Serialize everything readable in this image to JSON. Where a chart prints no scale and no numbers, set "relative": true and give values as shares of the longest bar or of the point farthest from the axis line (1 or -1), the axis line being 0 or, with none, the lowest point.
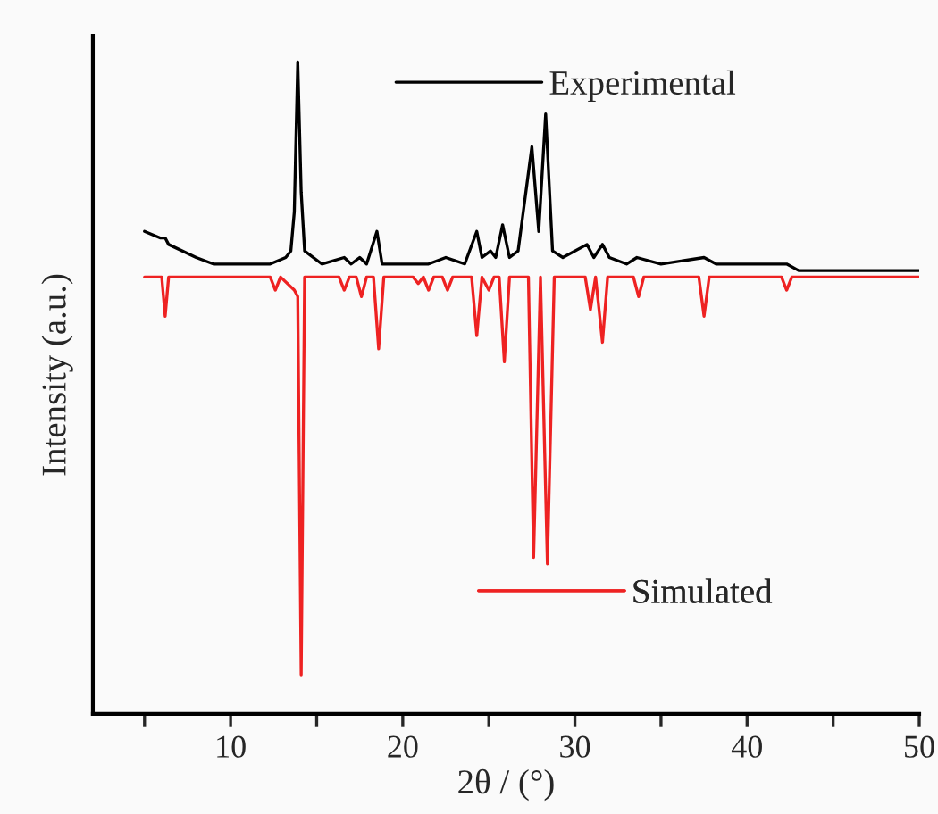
{
  "chart_data": {
    "type": "line",
    "relative": true,
    "xlabel": "2θ / (°)",
    "ylabel": "Intensity (a.u.)",
    "xlim": [
      2,
      50
    ],
    "xticks": [
      {
        "value": 5,
        "label": null
      },
      10,
      {
        "value": 15,
        "label": null
      },
      20,
      {
        "value": 25,
        "label": null
      },
      30,
      {
        "value": 35,
        "label": null
      },
      40,
      {
        "value": 45,
        "label": null
      },
      50
    ],
    "tick_labels": "x",
    "grid": false,
    "legend": "top",
    "marker": "none",
    "line_style": "solid",
    "series": [
      {
        "name": "Experimental",
        "color": "#000000",
        "x": [
          5.0,
          5.9,
          6.2,
          6.4,
          8.0,
          9.0,
          11.1,
          12.3,
          13.2,
          13.5,
          13.7,
          13.9,
          14.1,
          14.3,
          15.3,
          16.6,
          17.0,
          17.5,
          17.9,
          18.5,
          18.8,
          20.0,
          21.5,
          22.5,
          23.6,
          24.3,
          24.6,
          25.1,
          25.4,
          25.8,
          26.2,
          26.7,
          27.5,
          27.9,
          28.3,
          28.7,
          29.3,
          30.7,
          31.1,
          31.6,
          32.0,
          33.0,
          33.6,
          35.0,
          37.5,
          38.2,
          41.5,
          42.3,
          43.0,
          46.5,
          50.0
        ],
        "values": [
          0.74,
          0.73,
          0.73,
          0.72,
          0.7,
          0.69,
          0.69,
          0.69,
          0.7,
          0.71,
          0.77,
          1.0,
          0.8,
          0.71,
          0.69,
          0.7,
          0.69,
          0.7,
          0.69,
          0.74,
          0.69,
          0.69,
          0.69,
          0.7,
          0.69,
          0.74,
          0.7,
          0.71,
          0.7,
          0.75,
          0.7,
          0.71,
          0.87,
          0.74,
          0.92,
          0.71,
          0.7,
          0.72,
          0.7,
          0.72,
          0.7,
          0.69,
          0.7,
          0.69,
          0.7,
          0.69,
          0.69,
          0.69,
          0.68,
          0.68,
          0.68
        ]
      },
      {
        "name": "Simulated",
        "color": "#ee2222",
        "x": [
          5.0,
          6.0,
          6.2,
          6.4,
          12.3,
          12.6,
          12.9,
          13.7,
          13.9,
          14.1,
          14.3,
          16.3,
          16.6,
          16.9,
          17.3,
          17.6,
          17.9,
          18.3,
          18.6,
          18.9,
          20.6,
          20.9,
          21.2,
          21.5,
          21.8,
          22.3,
          22.6,
          22.9,
          24.0,
          24.3,
          24.6,
          25.0,
          25.3,
          25.6,
          25.9,
          26.2,
          27.3,
          27.6,
          28.0,
          28.4,
          28.8,
          30.6,
          30.9,
          31.2,
          31.6,
          31.9,
          33.4,
          33.7,
          34.0,
          37.2,
          37.5,
          37.8,
          42.0,
          42.3,
          42.6,
          50.0
        ],
        "values": [
          0.67,
          0.67,
          0.61,
          0.67,
          0.67,
          0.65,
          0.67,
          0.65,
          0.64,
          0.06,
          0.67,
          0.67,
          0.65,
          0.67,
          0.67,
          0.64,
          0.67,
          0.67,
          0.56,
          0.67,
          0.67,
          0.66,
          0.67,
          0.65,
          0.67,
          0.67,
          0.65,
          0.67,
          0.67,
          0.58,
          0.67,
          0.65,
          0.67,
          0.67,
          0.54,
          0.67,
          0.67,
          0.24,
          0.67,
          0.23,
          0.67,
          0.67,
          0.62,
          0.67,
          0.57,
          0.67,
          0.67,
          0.64,
          0.67,
          0.67,
          0.61,
          0.67,
          0.67,
          0.65,
          0.67,
          0.67
        ]
      }
    ]
  }
}
